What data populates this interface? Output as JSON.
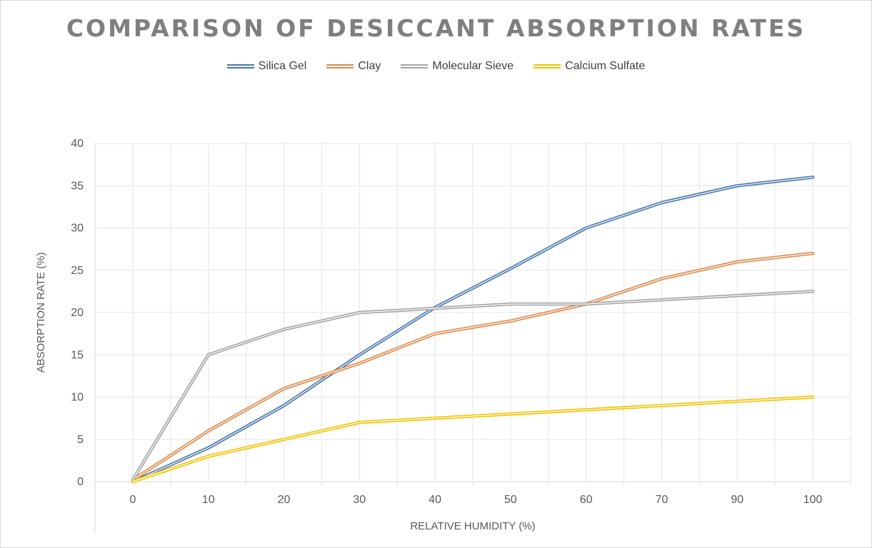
{
  "chart_data": {
    "type": "line",
    "title": "COMPARISON OF DESICCANT ABSORPTION RATES",
    "xlabel": "RELATIVE HUMIDITY (%)",
    "ylabel": "ABSORPTION RATE (%)",
    "categories": [
      "0",
      "10",
      "20",
      "30",
      "40",
      "50",
      "60",
      "70",
      "90",
      "100"
    ],
    "ylim": [
      0,
      40
    ],
    "yticks": [
      "0",
      "5",
      "10",
      "15",
      "20",
      "25",
      "30",
      "35",
      "40"
    ],
    "grid": true,
    "legend_position": "top",
    "series": [
      {
        "name": "Silica Gel",
        "color": "#4a77ad",
        "values": [
          0,
          4,
          9,
          15,
          20.6,
          25.2,
          30,
          33,
          35,
          36
        ]
      },
      {
        "name": "Clay",
        "color": "#de8a4d",
        "values": [
          0.2,
          6,
          11,
          14,
          17.5,
          19,
          21,
          24,
          26,
          27
        ]
      },
      {
        "name": "Molecular Sieve",
        "color": "#a5a5a5",
        "values": [
          0.2,
          15,
          18,
          20,
          20.5,
          21,
          21,
          21.5,
          22,
          22.5
        ]
      },
      {
        "name": "Calcium Sulfate",
        "color": "#f2c400",
        "values": [
          0,
          3,
          5,
          7,
          7.5,
          8,
          8.5,
          9,
          9.5,
          10
        ]
      }
    ]
  }
}
